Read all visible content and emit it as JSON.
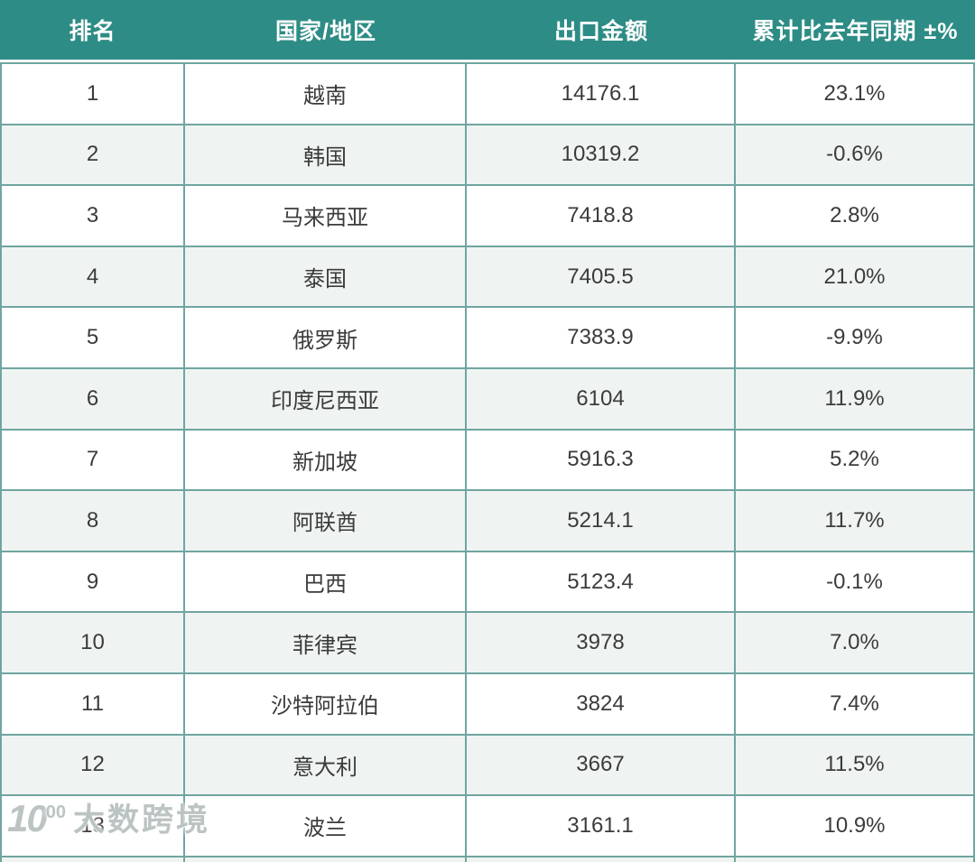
{
  "chart_data": {
    "type": "table",
    "title": "",
    "columns": [
      "排名",
      "国家/地区",
      "出口金额",
      "累计比去年同期 ±%"
    ],
    "rows": [
      [
        1,
        "越南",
        14176.1,
        "23.1%"
      ],
      [
        2,
        "韩国",
        10319.2,
        "-0.6%"
      ],
      [
        3,
        "马来西亚",
        7418.8,
        "2.8%"
      ],
      [
        4,
        "泰国",
        7405.5,
        "21.0%"
      ],
      [
        5,
        "俄罗斯",
        7383.9,
        "-9.9%"
      ],
      [
        6,
        "印度尼西亚",
        6104,
        "11.9%"
      ],
      [
        7,
        "新加坡",
        5916.3,
        "5.2%"
      ],
      [
        8,
        "阿联酋",
        5214.1,
        "11.7%"
      ],
      [
        9,
        "巴西",
        5123.4,
        "-0.1%"
      ],
      [
        10,
        "菲律宾",
        3978,
        "7.0%"
      ],
      [
        11,
        "沙特阿拉伯",
        3824,
        "7.4%"
      ],
      [
        12,
        "意大利",
        3667,
        "11.5%"
      ],
      [
        13,
        "波兰",
        3161.1,
        "10.9%"
      ]
    ]
  },
  "table": {
    "columns": [
      {
        "key": "rank",
        "label": "排名"
      },
      {
        "key": "country",
        "label": "国家/地区"
      },
      {
        "key": "export",
        "label": "出口金额"
      },
      {
        "key": "yoy",
        "label": "累计比去年同期 ±%"
      }
    ],
    "rows": [
      {
        "rank": "1",
        "country": "越南",
        "export": "14176.1",
        "yoy": "23.1%"
      },
      {
        "rank": "2",
        "country": "韩国",
        "export": "10319.2",
        "yoy": "-0.6%"
      },
      {
        "rank": "3",
        "country": "马来西亚",
        "export": "7418.8",
        "yoy": "2.8%"
      },
      {
        "rank": "4",
        "country": "泰国",
        "export": "7405.5",
        "yoy": "21.0%"
      },
      {
        "rank": "5",
        "country": "俄罗斯",
        "export": "7383.9",
        "yoy": "-9.9%"
      },
      {
        "rank": "6",
        "country": "印度尼西亚",
        "export": "6104",
        "yoy": "11.9%"
      },
      {
        "rank": "7",
        "country": "新加坡",
        "export": "5916.3",
        "yoy": "5.2%"
      },
      {
        "rank": "8",
        "country": "阿联酋",
        "export": "5214.1",
        "yoy": "11.7%"
      },
      {
        "rank": "9",
        "country": "巴西",
        "export": "5123.4",
        "yoy": "-0.1%"
      },
      {
        "rank": "10",
        "country": "菲律宾",
        "export": "3978",
        "yoy": "7.0%"
      },
      {
        "rank": "11",
        "country": "沙特阿拉伯",
        "export": "3824",
        "yoy": "7.4%"
      },
      {
        "rank": "12",
        "country": "意大利",
        "export": "3667",
        "yoy": "11.5%"
      },
      {
        "rank": "13",
        "country": "波兰",
        "export": "3161.1",
        "yoy": "10.9%"
      }
    ]
  },
  "watermark": {
    "logo_base": "10",
    "logo_sup": "00",
    "text": "大数跨境"
  },
  "colors": {
    "header_bg": "#2D8C85",
    "header_text": "#FFFFFF",
    "border": "#6FA5A0",
    "row_bg": "#FFFFFF",
    "row_alt_bg": "#EFF4F3",
    "body_text": "#3B3B3B"
  }
}
